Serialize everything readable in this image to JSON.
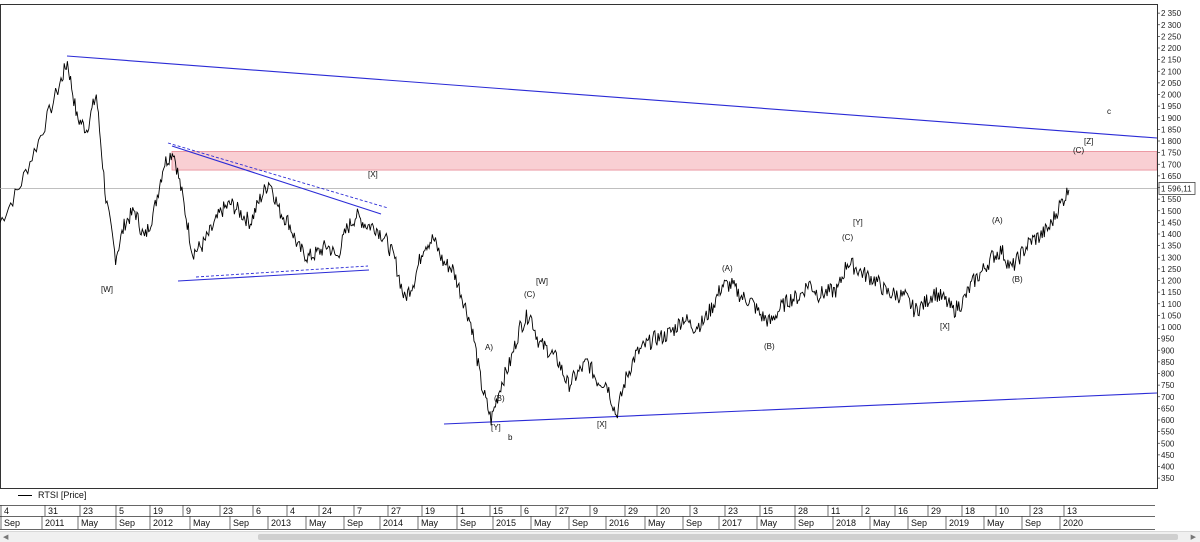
{
  "legend": {
    "label": "RTSI [Price]"
  },
  "price_tag": "1 596,11",
  "colors": {
    "zone_fill": "#f9cfd3",
    "zone_stroke": "#e88a96",
    "trend": "#2b2bd6",
    "price": "#000000"
  },
  "chart_data": {
    "type": "line",
    "series": [
      {
        "name": "RTSI [Price]",
        "x": [
          "2010-09",
          "2010-11",
          "2011-01",
          "2011-03",
          "2011-04",
          "2011-05",
          "2011-06",
          "2011-07",
          "2011-08",
          "2011-09",
          "2011-10",
          "2011-11",
          "2011-12",
          "2012-01",
          "2012-02",
          "2012-03",
          "2012-04",
          "2012-05",
          "2012-06",
          "2012-07",
          "2012-08",
          "2012-09",
          "2012-10",
          "2012-11",
          "2012-12",
          "2013-01",
          "2013-02",
          "2013-03",
          "2013-04",
          "2013-05",
          "2013-06",
          "2013-07",
          "2013-08",
          "2013-09",
          "2013-10",
          "2013-11",
          "2013-12",
          "2014-01",
          "2014-02",
          "2014-03",
          "2014-04",
          "2014-05",
          "2014-06",
          "2014-07",
          "2014-08",
          "2014-09",
          "2014-10",
          "2014-11",
          "2014-12",
          "2015-01",
          "2015-02",
          "2015-03",
          "2015-04",
          "2015-05",
          "2015-06",
          "2015-07",
          "2015-08",
          "2015-09",
          "2015-10",
          "2015-11",
          "2015-12",
          "2016-01",
          "2016-02",
          "2016-03",
          "2016-04",
          "2016-05",
          "2016-06",
          "2016-07",
          "2016-08",
          "2016-09",
          "2016-10",
          "2016-11",
          "2016-12",
          "2017-01",
          "2017-02",
          "2017-03",
          "2017-04",
          "2017-05",
          "2017-06",
          "2017-07",
          "2017-08",
          "2017-09",
          "2017-10",
          "2017-11",
          "2017-12",
          "2018-01",
          "2018-02",
          "2018-03",
          "2018-04",
          "2018-05",
          "2018-06",
          "2018-07",
          "2018-08",
          "2018-09",
          "2018-10",
          "2018-11",
          "2018-12",
          "2019-01",
          "2019-02",
          "2019-03",
          "2019-04",
          "2019-05",
          "2019-06",
          "2019-07",
          "2019-08",
          "2019-09",
          "2019-10",
          "2019-11",
          "2019-12"
        ],
        "values": [
          1450,
          1600,
          1800,
          2020,
          2140,
          1900,
          1850,
          2000,
          1550,
          1300,
          1450,
          1500,
          1380,
          1500,
          1700,
          1760,
          1550,
          1320,
          1350,
          1420,
          1500,
          1530,
          1490,
          1450,
          1550,
          1630,
          1500,
          1450,
          1340,
          1300,
          1320,
          1350,
          1300,
          1420,
          1480,
          1440,
          1430,
          1380,
          1290,
          1120,
          1200,
          1350,
          1380,
          1280,
          1250,
          1130,
          1000,
          750,
          600,
          750,
          850,
          1000,
          1060,
          930,
          900,
          850,
          750,
          800,
          850,
          770,
          760,
          620,
          780,
          880,
          920,
          950,
          960,
          990,
          1040,
          1000,
          1020,
          1090,
          1180,
          1180,
          1130,
          1110,
          1050,
          1020,
          1080,
          1120,
          1130,
          1190,
          1140,
          1150,
          1160,
          1280,
          1250,
          1220,
          1200,
          1150,
          1140,
          1130,
          1070,
          1100,
          1150,
          1120,
          1070,
          1110,
          1190,
          1240,
          1300,
          1330,
          1250,
          1310,
          1370,
          1390,
          1430,
          1520,
          1590
        ]
      }
    ],
    "y_axis": {
      "ticks": [
        "2 350",
        "2 300",
        "2 250",
        "2 200",
        "2 150",
        "2 100",
        "2 050",
        "2 000",
        "1 950",
        "1 900",
        "1 850",
        "1 800",
        "1 750",
        "1 700",
        "1 650",
        "1 600",
        "1 550",
        "1 500",
        "1 450",
        "1 400",
        "1 350",
        "1 300",
        "1 250",
        "1 200",
        "1 150",
        "1 100",
        "1 050",
        "1 000",
        "950",
        "900",
        "850",
        "800",
        "750",
        "700",
        "650",
        "600",
        "550",
        "500",
        "450",
        "400",
        "350"
      ],
      "range": [
        300,
        2400
      ]
    },
    "x_axis": {
      "days": [
        "4",
        "31",
        "23",
        "5",
        "19",
        "9",
        "23",
        "6",
        "4",
        "24",
        "7",
        "27",
        "19",
        "1",
        "15",
        "6",
        "27",
        "9",
        "29",
        "20",
        "3",
        "23",
        "15",
        "28",
        "11",
        "2",
        "16",
        "29",
        "18",
        "10",
        "23",
        "13"
      ],
      "months": [
        "Sep",
        "2011",
        "May",
        "Sep",
        "2012",
        "May",
        "Sep",
        "2013",
        "May",
        "Sep",
        "2014",
        "May",
        "Sep",
        "2015",
        "May",
        "Sep",
        "2016",
        "May",
        "Sep",
        "2017",
        "May",
        "Sep",
        "2018",
        "May",
        "Sep",
        "2019",
        "May",
        "Sep",
        "2020"
      ]
    },
    "wave_labels": [
      "[W]",
      "[X]",
      "A)",
      "(B)",
      "[Y]",
      "b",
      "(C)",
      "[W]",
      "[X]",
      "(A)",
      "(B)",
      "(C)",
      "[Y]",
      "[X]",
      "(A)",
      "(B)",
      "(C)",
      "[Z]",
      "c"
    ],
    "resistance_zone": [
      1675,
      1755
    ],
    "current_price": 1596.11,
    "grid": false,
    "legend_position": "bottom-left"
  }
}
